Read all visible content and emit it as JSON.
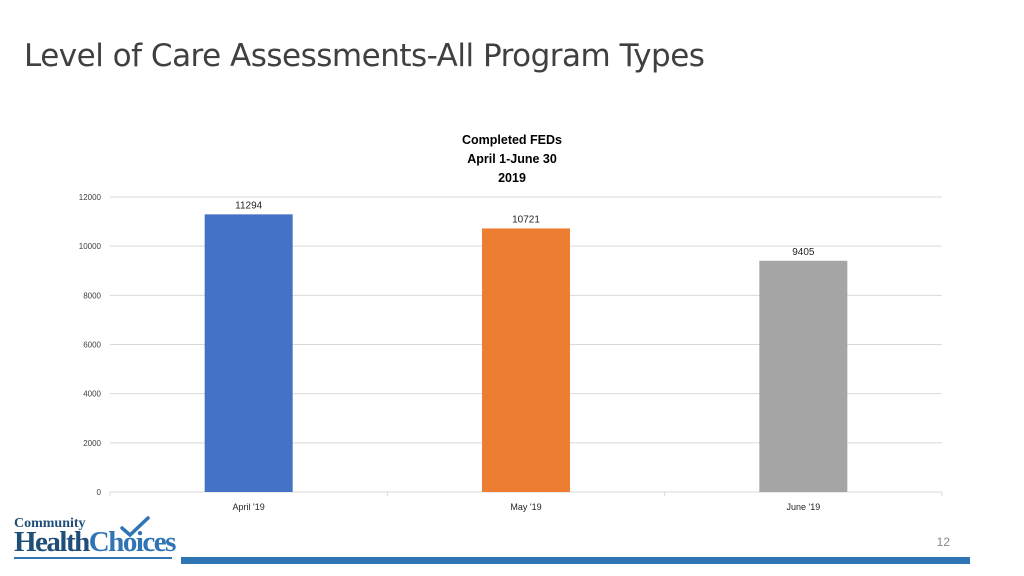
{
  "slide": {
    "title": "Level of Care Assessments-All Program Types",
    "page_number": "12"
  },
  "logo": {
    "top_text": "Community",
    "health_text": "Health",
    "choices_text": "Choices"
  },
  "colors": {
    "bar_april": "#4472c4",
    "bar_may": "#ed7d31",
    "bar_june": "#a5a5a5",
    "footer_bar": "#2f75b5",
    "gridline": "#d9d9d9"
  },
  "chart_data": {
    "type": "bar",
    "title_lines": [
      "Completed FEDs",
      "April 1-June 30",
      "2019"
    ],
    "categories": [
      "April '19",
      "May '19",
      "June '19"
    ],
    "values": [
      11294,
      10721,
      9405
    ],
    "data_labels": [
      "11294",
      "10721",
      "9405"
    ],
    "ylim": [
      0,
      12000
    ],
    "yticks": [
      0,
      2000,
      4000,
      6000,
      8000,
      10000,
      12000
    ],
    "ytick_labels": [
      "0",
      "2000",
      "4000",
      "6000",
      "8000",
      "10000",
      "12000"
    ],
    "grid": true,
    "legend": "none"
  }
}
